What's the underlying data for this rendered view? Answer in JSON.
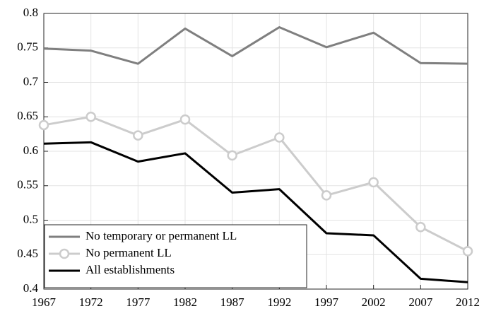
{
  "chart_data": {
    "type": "line",
    "x": [
      1967,
      1972,
      1977,
      1982,
      1987,
      1992,
      1997,
      2002,
      2007,
      2012
    ],
    "series": [
      {
        "name": "No temporary or permanent LL",
        "color": "#7f7f7f",
        "marker": "none",
        "values": [
          0.749,
          0.746,
          0.727,
          0.778,
          0.738,
          0.78,
          0.751,
          0.772,
          0.728,
          0.727
        ]
      },
      {
        "name": "No permanent LL",
        "color": "#cccccc",
        "marker": "circle",
        "values": [
          0.638,
          0.65,
          0.623,
          0.646,
          0.594,
          0.62,
          0.536,
          0.555,
          0.49,
          0.455
        ]
      },
      {
        "name": "All establishments",
        "color": "#000000",
        "marker": "none",
        "values": [
          0.611,
          0.613,
          0.585,
          0.597,
          0.54,
          0.545,
          0.481,
          0.478,
          0.415,
          0.41
        ]
      }
    ],
    "xlim": [
      1967,
      2012
    ],
    "xticks": [
      1967,
      1972,
      1977,
      1982,
      1987,
      1992,
      1997,
      2002,
      2007,
      2012
    ],
    "ylim": [
      0.4,
      0.8
    ],
    "yticks": [
      0.4,
      0.45,
      0.5,
      0.55,
      0.6,
      0.65,
      0.7,
      0.75,
      0.8
    ],
    "grid": true,
    "legend": "lower left"
  }
}
